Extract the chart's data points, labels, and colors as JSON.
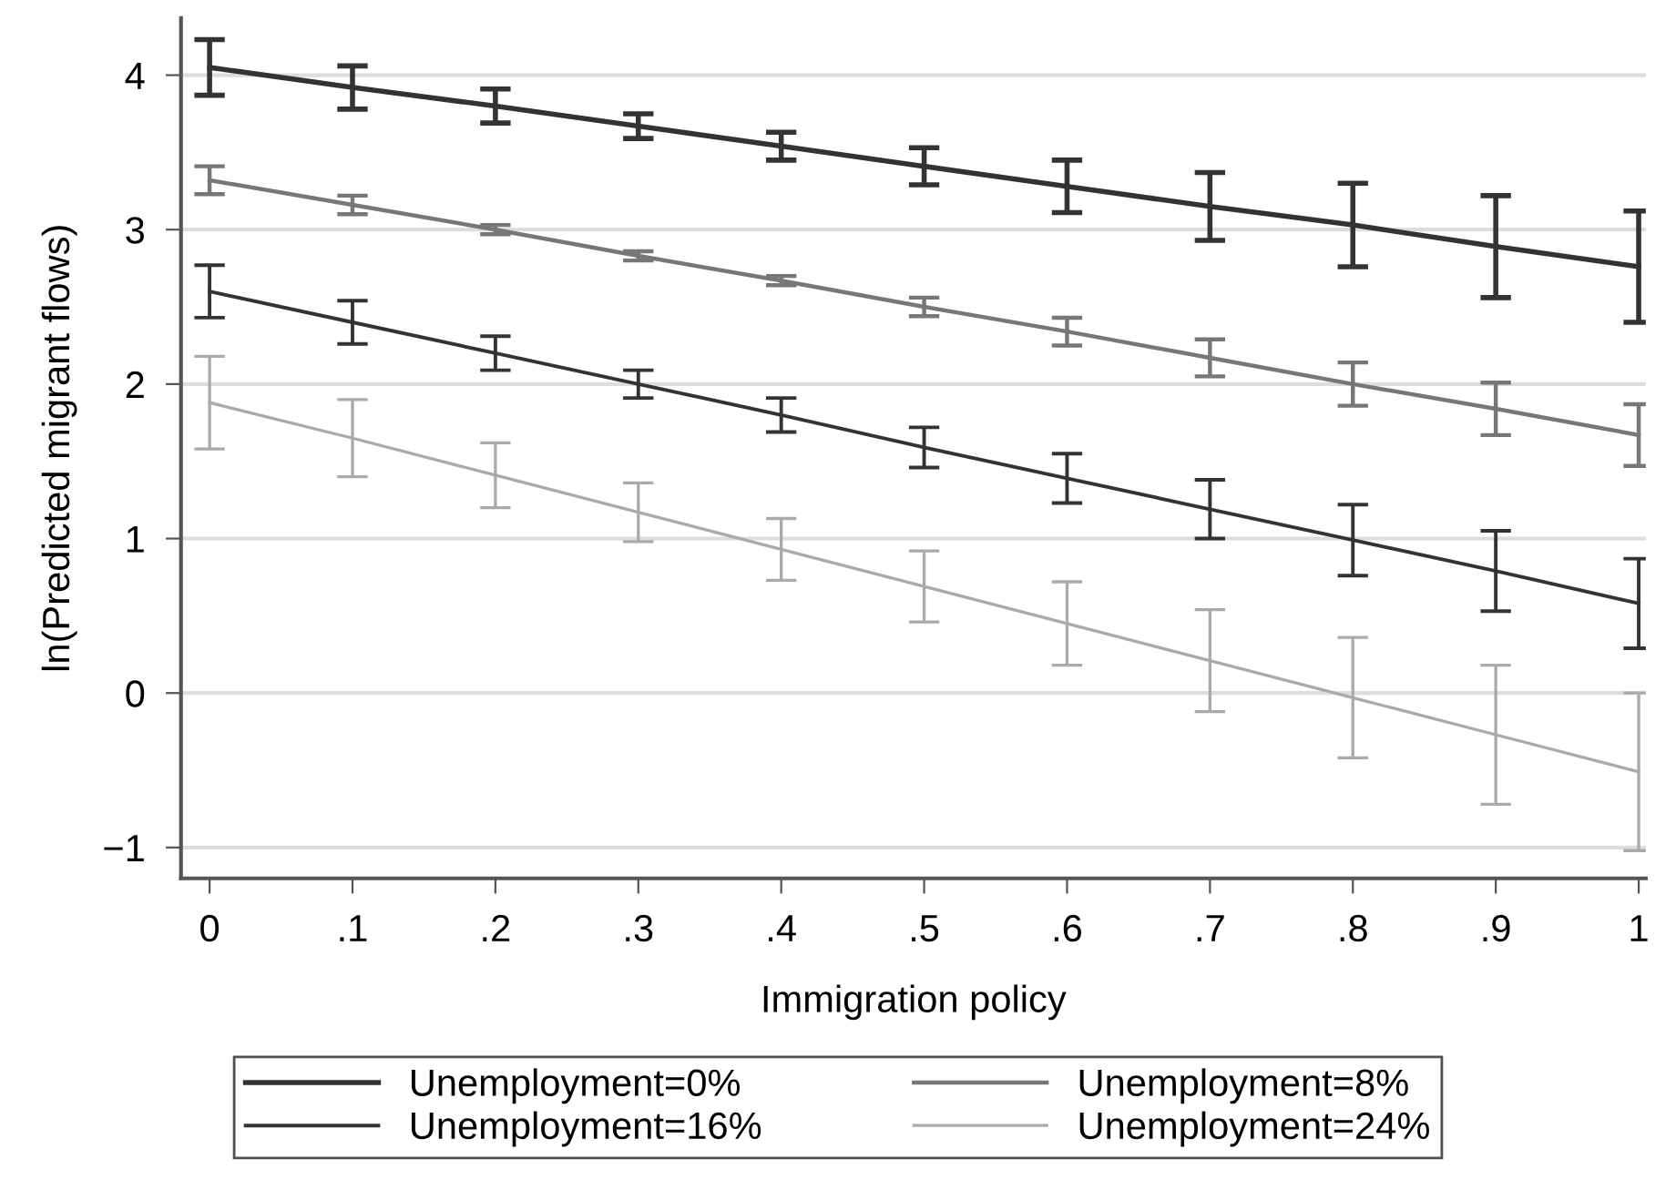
{
  "chart_data": {
    "type": "line",
    "xlabel": "Immigration policy",
    "ylabel": "ln(Predicted migrant flows)",
    "x": [
      0,
      0.1,
      0.2,
      0.3,
      0.4,
      0.5,
      0.6,
      0.7,
      0.8,
      0.9,
      1
    ],
    "series": [
      {
        "name": "Unemployment=0%",
        "color": "#333333",
        "values": [
          4.05,
          3.92,
          3.8,
          3.67,
          3.54,
          3.41,
          3.28,
          3.15,
          3.03,
          2.89,
          2.76
        ],
        "errors": [
          0.18,
          0.14,
          0.11,
          0.08,
          0.09,
          0.12,
          0.17,
          0.22,
          0.27,
          0.33,
          0.36
        ]
      },
      {
        "name": "Unemployment=8%",
        "color": "#777777",
        "values": [
          3.32,
          3.16,
          3.0,
          2.83,
          2.67,
          2.5,
          2.34,
          2.17,
          2.0,
          1.84,
          1.67
        ],
        "errors": [
          0.09,
          0.06,
          0.03,
          0.03,
          0.03,
          0.06,
          0.09,
          0.12,
          0.14,
          0.17,
          0.2
        ]
      },
      {
        "name": "Unemployment=16%",
        "color": "#333333",
        "values": [
          2.6,
          2.4,
          2.2,
          2.0,
          1.8,
          1.59,
          1.39,
          1.19,
          0.99,
          0.79,
          0.58
        ],
        "errors": [
          0.17,
          0.14,
          0.11,
          0.09,
          0.11,
          0.13,
          0.16,
          0.19,
          0.23,
          0.26,
          0.29
        ]
      },
      {
        "name": "Unemployment=24%",
        "color": "#aaaaaa",
        "values": [
          1.88,
          1.65,
          1.41,
          1.17,
          0.93,
          0.69,
          0.45,
          0.21,
          -0.03,
          -0.27,
          -0.51
        ],
        "errors": [
          0.3,
          0.25,
          0.21,
          0.19,
          0.2,
          0.23,
          0.27,
          0.33,
          0.39,
          0.45,
          0.51
        ]
      }
    ],
    "xlim": [
      -0.02,
      1.005
    ],
    "ylim": [
      -1.2,
      4.37
    ],
    "xticks": [
      {
        "value": 0,
        "label": "0"
      },
      {
        "value": 0.1,
        "label": ".1"
      },
      {
        "value": 0.2,
        "label": ".2"
      },
      {
        "value": 0.3,
        "label": ".3"
      },
      {
        "value": 0.4,
        "label": ".4"
      },
      {
        "value": 0.5,
        "label": ".5"
      },
      {
        "value": 0.6,
        "label": ".6"
      },
      {
        "value": 0.7,
        "label": ".7"
      },
      {
        "value": 0.8,
        "label": ".8"
      },
      {
        "value": 0.9,
        "label": ".9"
      },
      {
        "value": 1,
        "label": "1"
      }
    ],
    "yticks": [
      {
        "value": -1,
        "label": "−1"
      },
      0,
      1,
      2,
      3,
      4
    ],
    "grid": "y",
    "legend": "bottom",
    "marker": "none",
    "line_style": "solid"
  }
}
